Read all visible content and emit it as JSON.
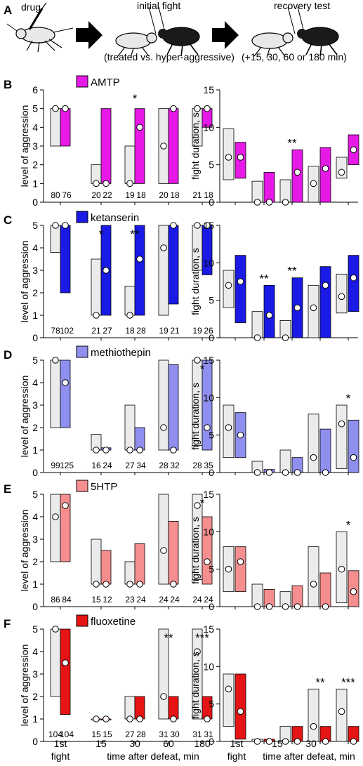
{
  "schematic": {
    "letter": "A",
    "labels": [
      "drug",
      "initial fight",
      "recovery test"
    ],
    "notes": [
      "(treated vs. hyper-aggressive)",
      "(+15, 30, 60 or 180 min)"
    ]
  },
  "x_axis": {
    "first_label": [
      "1st",
      "fight"
    ],
    "time_ticks": [
      "15",
      "30",
      "60",
      "180"
    ],
    "title": "time after defeat, min"
  },
  "chart_data": [
    {
      "letter": "B",
      "drug": "AMTP",
      "color": "#e619e6",
      "type": "bar",
      "aggression": {
        "ylabel": "level of aggression",
        "ylim": [
          0,
          6
        ],
        "yticks": [
          "0",
          "1",
          "2",
          "3",
          "4",
          "5",
          "6"
        ],
        "control": [
          {
            "q1": 3,
            "q3": 5,
            "median": 5
          },
          {
            "q1": 1,
            "q3": 2,
            "median": 1
          },
          {
            "q1": 1,
            "q3": 3,
            "median": 1
          },
          {
            "q1": 1,
            "q3": 5,
            "median": 3
          },
          {
            "q1": 3,
            "q3": 5,
            "median": 5
          }
        ],
        "treated": [
          {
            "q1": 3,
            "q3": 5,
            "median": 5
          },
          {
            "q1": 1,
            "q3": 5,
            "median": 1
          },
          {
            "q1": 1,
            "q3": 5,
            "median": 4
          },
          {
            "q1": 1,
            "q3": 5,
            "median": 5
          },
          {
            "q1": 4,
            "q3": 5,
            "median": 5
          }
        ],
        "n": [
          [
            "80",
            "76"
          ],
          [
            "20",
            "22"
          ],
          [
            "19",
            "18"
          ],
          [
            "20",
            "18"
          ],
          [
            "21",
            "18"
          ]
        ],
        "sig": [
          "",
          "",
          "*",
          "",
          ""
        ]
      },
      "duration": {
        "ylabel": "fight duration, s",
        "ylim": [
          0,
          15
        ],
        "yticks": [
          "0",
          "5",
          "10",
          "15"
        ],
        "control": [
          {
            "q1": 3,
            "q3": 9.8,
            "median": 6
          },
          {
            "q1": 0,
            "q3": 2.8,
            "median": 0
          },
          {
            "q1": 0,
            "q3": 3,
            "median": 0
          },
          {
            "q1": 0,
            "q3": 4.8,
            "median": 2.5
          },
          {
            "q1": 3.2,
            "q3": 6,
            "median": 4
          }
        ],
        "treated": [
          {
            "q1": 3.2,
            "q3": 8,
            "median": 6
          },
          {
            "q1": 0,
            "q3": 4,
            "median": 0
          },
          {
            "q1": 0,
            "q3": 7,
            "median": 4
          },
          {
            "q1": 0,
            "q3": 7.3,
            "median": 4.5
          },
          {
            "q1": 5,
            "q3": 9,
            "median": 7
          }
        ],
        "sig": [
          "",
          "",
          "**",
          "",
          ""
        ]
      }
    },
    {
      "letter": "C",
      "drug": "ketanserin",
      "color": "#1a1ae6",
      "type": "bar",
      "aggression": {
        "ylabel": "level of aggression",
        "ylim": [
          0,
          5
        ],
        "yticks": [
          "0",
          "1",
          "2",
          "3",
          "4",
          "5"
        ],
        "control": [
          {
            "q1": 3.8,
            "q3": 5,
            "median": 5
          },
          {
            "q1": 1,
            "q3": 3.5,
            "median": 1
          },
          {
            "q1": 1,
            "q3": 2.3,
            "median": 1
          },
          {
            "q1": 1,
            "q3": 5,
            "median": 4
          },
          {
            "q1": 3,
            "q3": 5,
            "median": 5
          }
        ],
        "treated": [
          {
            "q1": 2,
            "q3": 5,
            "median": 5
          },
          {
            "q1": 1,
            "q3": 5,
            "median": 3
          },
          {
            "q1": 1,
            "q3": 5,
            "median": 3.5
          },
          {
            "q1": 1.5,
            "q3": 5,
            "median": 5
          },
          {
            "q1": 2.8,
            "q3": 5,
            "median": 5
          }
        ],
        "n": [
          [
            "78",
            "102"
          ],
          [
            "21",
            "27"
          ],
          [
            "18",
            "28"
          ],
          [
            "19",
            "21"
          ],
          [
            "19",
            "26"
          ]
        ],
        "sig": [
          "",
          "*",
          "**",
          "",
          ""
        ]
      },
      "duration": {
        "ylabel": "fight duration, s",
        "ylim": [
          0,
          15
        ],
        "yticks": [
          "0",
          "5",
          "10",
          "15"
        ],
        "control": [
          {
            "q1": 4,
            "q3": 9,
            "median": 7
          },
          {
            "q1": 0,
            "q3": 3.5,
            "median": 0
          },
          {
            "q1": 0,
            "q3": 2.3,
            "median": 0
          },
          {
            "q1": 0,
            "q3": 7,
            "median": 4
          },
          {
            "q1": 3.3,
            "q3": 8.5,
            "median": 5.5
          }
        ],
        "treated": [
          {
            "q1": 2,
            "q3": 11,
            "median": 7.5
          },
          {
            "q1": 0,
            "q3": 7,
            "median": 3
          },
          {
            "q1": 0,
            "q3": 8,
            "median": 4
          },
          {
            "q1": 0,
            "q3": 9.5,
            "median": 7
          },
          {
            "q1": 3.5,
            "q3": 11,
            "median": 8
          }
        ],
        "sig": [
          "",
          "**",
          "**",
          "",
          ""
        ]
      }
    },
    {
      "letter": "D",
      "drug": "methiothepin",
      "color": "#8f8fef",
      "type": "bar",
      "aggression": {
        "ylabel": "level of aggression",
        "ylim": [
          0,
          5
        ],
        "yticks": [
          "0",
          "1",
          "2",
          "3",
          "4",
          "5"
        ],
        "control": [
          {
            "q1": 2,
            "q3": 5,
            "median": 5
          },
          {
            "q1": 1,
            "q3": 1.7,
            "median": 1
          },
          {
            "q1": 1,
            "q3": 3,
            "median": 1
          },
          {
            "q1": 1,
            "q3": 5,
            "median": 2
          },
          {
            "q1": 1.2,
            "q3": 5,
            "median": 5
          }
        ],
        "treated": [
          {
            "q1": 2,
            "q3": 5,
            "median": 4
          },
          {
            "q1": 1,
            "q3": 1.1,
            "median": 1
          },
          {
            "q1": 1,
            "q3": 2,
            "median": 1
          },
          {
            "q1": 1,
            "q3": 4.8,
            "median": 1
          },
          {
            "q1": 1,
            "q3": 5,
            "median": 2
          }
        ],
        "n": [
          [
            "99",
            "125"
          ],
          [
            "16",
            "24"
          ],
          [
            "27",
            "34"
          ],
          [
            "28",
            "32"
          ],
          [
            "28",
            "35"
          ]
        ],
        "sig": [
          "",
          "",
          "",
          "",
          "*"
        ]
      },
      "duration": {
        "ylabel": "fight duration, s",
        "ylim": [
          0,
          15
        ],
        "yticks": [
          "0",
          "5",
          "10",
          "15"
        ],
        "control": [
          {
            "q1": 2,
            "q3": 9,
            "median": 6
          },
          {
            "q1": 0,
            "q3": 1.5,
            "median": 0
          },
          {
            "q1": 0,
            "q3": 3,
            "median": 0
          },
          {
            "q1": 0,
            "q3": 7.8,
            "median": 2
          },
          {
            "q1": 0.5,
            "q3": 9,
            "median": 6.5
          }
        ],
        "treated": [
          {
            "q1": 2,
            "q3": 8,
            "median": 5
          },
          {
            "q1": 0,
            "q3": 0.4,
            "median": 0
          },
          {
            "q1": 0,
            "q3": 2,
            "median": 0
          },
          {
            "q1": 0,
            "q3": 5.8,
            "median": 0
          },
          {
            "q1": 0,
            "q3": 7,
            "median": 2
          }
        ],
        "sig": [
          "",
          "",
          "",
          "",
          "*"
        ]
      }
    },
    {
      "letter": "E",
      "drug": "5HTP",
      "color": "#f58e8e",
      "type": "bar",
      "aggression": {
        "ylabel": "level of aggression",
        "ylim": [
          0,
          5
        ],
        "yticks": [
          "0",
          "1",
          "2",
          "3",
          "4",
          "5"
        ],
        "control": [
          {
            "q1": 2,
            "q3": 5,
            "median": 4
          },
          {
            "q1": 1,
            "q3": 3,
            "median": 1
          },
          {
            "q1": 1,
            "q3": 2,
            "median": 1
          },
          {
            "q1": 1,
            "q3": 5,
            "median": 2.5
          },
          {
            "q1": 1.2,
            "q3": 5,
            "median": 4.5
          }
        ],
        "treated": [
          {
            "q1": 2,
            "q3": 5,
            "median": 4.5
          },
          {
            "q1": 1,
            "q3": 2.5,
            "median": 1
          },
          {
            "q1": 1,
            "q3": 2.8,
            "median": 1
          },
          {
            "q1": 1,
            "q3": 3.8,
            "median": 1
          },
          {
            "q1": 1,
            "q3": 4,
            "median": 2
          }
        ],
        "n": [
          [
            "86",
            "84"
          ],
          [
            "15",
            "12"
          ],
          [
            "23",
            "24"
          ],
          [
            "24",
            "24"
          ],
          [
            "24",
            "24"
          ]
        ],
        "sig": [
          "",
          "",
          "",
          "",
          "*"
        ]
      },
      "duration": {
        "ylabel": "fight duration, s",
        "ylim": [
          0,
          15
        ],
        "yticks": [
          "0",
          "5",
          "10",
          "15"
        ],
        "control": [
          {
            "q1": 2,
            "q3": 8,
            "median": 5
          },
          {
            "q1": 0,
            "q3": 3,
            "median": 0
          },
          {
            "q1": 0,
            "q3": 2,
            "median": 0
          },
          {
            "q1": 0,
            "q3": 8,
            "median": 3
          },
          {
            "q1": 0.5,
            "q3": 10,
            "median": 5
          }
        ],
        "treated": [
          {
            "q1": 2,
            "q3": 8,
            "median": 6
          },
          {
            "q1": 0,
            "q3": 2.3,
            "median": 0
          },
          {
            "q1": 0,
            "q3": 2.8,
            "median": 0
          },
          {
            "q1": 0,
            "q3": 4.5,
            "median": 0
          },
          {
            "q1": 0,
            "q3": 4.8,
            "median": 2
          }
        ],
        "sig": [
          "",
          "",
          "",
          "",
          "*"
        ]
      }
    },
    {
      "letter": "F",
      "drug": "fluoxetine",
      "color": "#e61414",
      "type": "bar",
      "aggression": {
        "ylabel": "level of aggression",
        "ylim": [
          0,
          5
        ],
        "yticks": [
          "0",
          "1",
          "2",
          "3",
          "4",
          "5"
        ],
        "control": [
          {
            "q1": 2,
            "q3": 5,
            "median": 5
          },
          {
            "q1": 1,
            "q3": 1,
            "median": 1
          },
          {
            "q1": 1,
            "q3": 2,
            "median": 1
          },
          {
            "q1": 1,
            "q3": 5,
            "median": 2
          },
          {
            "q1": 1,
            "q3": 5,
            "median": 4
          }
        ],
        "treated": [
          {
            "q1": 1.2,
            "q3": 5,
            "median": 3.5
          },
          {
            "q1": 1,
            "q3": 1,
            "median": 1
          },
          {
            "q1": 1,
            "q3": 2,
            "median": 1
          },
          {
            "q1": 1,
            "q3": 2,
            "median": 1
          },
          {
            "q1": 1,
            "q3": 2,
            "median": 1
          }
        ],
        "n": [
          [
            "104",
            "104"
          ],
          [
            "15",
            "15"
          ],
          [
            "27",
            "28"
          ],
          [
            "31",
            "30"
          ],
          [
            "31",
            "31"
          ]
        ],
        "sig": [
          "",
          "",
          "",
          "**",
          "***"
        ]
      },
      "duration": {
        "ylabel": "fight duration, s",
        "ylim": [
          0,
          15
        ],
        "yticks": [
          "0",
          "5",
          "10",
          "15"
        ],
        "control": [
          {
            "q1": 2,
            "q3": 9,
            "median": 7
          },
          {
            "q1": 0,
            "q3": 0.3,
            "median": 0
          },
          {
            "q1": 0,
            "q3": 2,
            "median": 0
          },
          {
            "q1": 0,
            "q3": 7,
            "median": 2
          },
          {
            "q1": 0,
            "q3": 7,
            "median": 4
          }
        ],
        "treated": [
          {
            "q1": 0.3,
            "q3": 9,
            "median": 4
          },
          {
            "q1": 0,
            "q3": 0.3,
            "median": 0
          },
          {
            "q1": 0,
            "q3": 2,
            "median": 0
          },
          {
            "q1": 0,
            "q3": 2,
            "median": 0
          },
          {
            "q1": 0,
            "q3": 2,
            "median": 0
          }
        ],
        "sig": [
          "",
          "",
          "",
          "**",
          "***"
        ]
      }
    }
  ]
}
